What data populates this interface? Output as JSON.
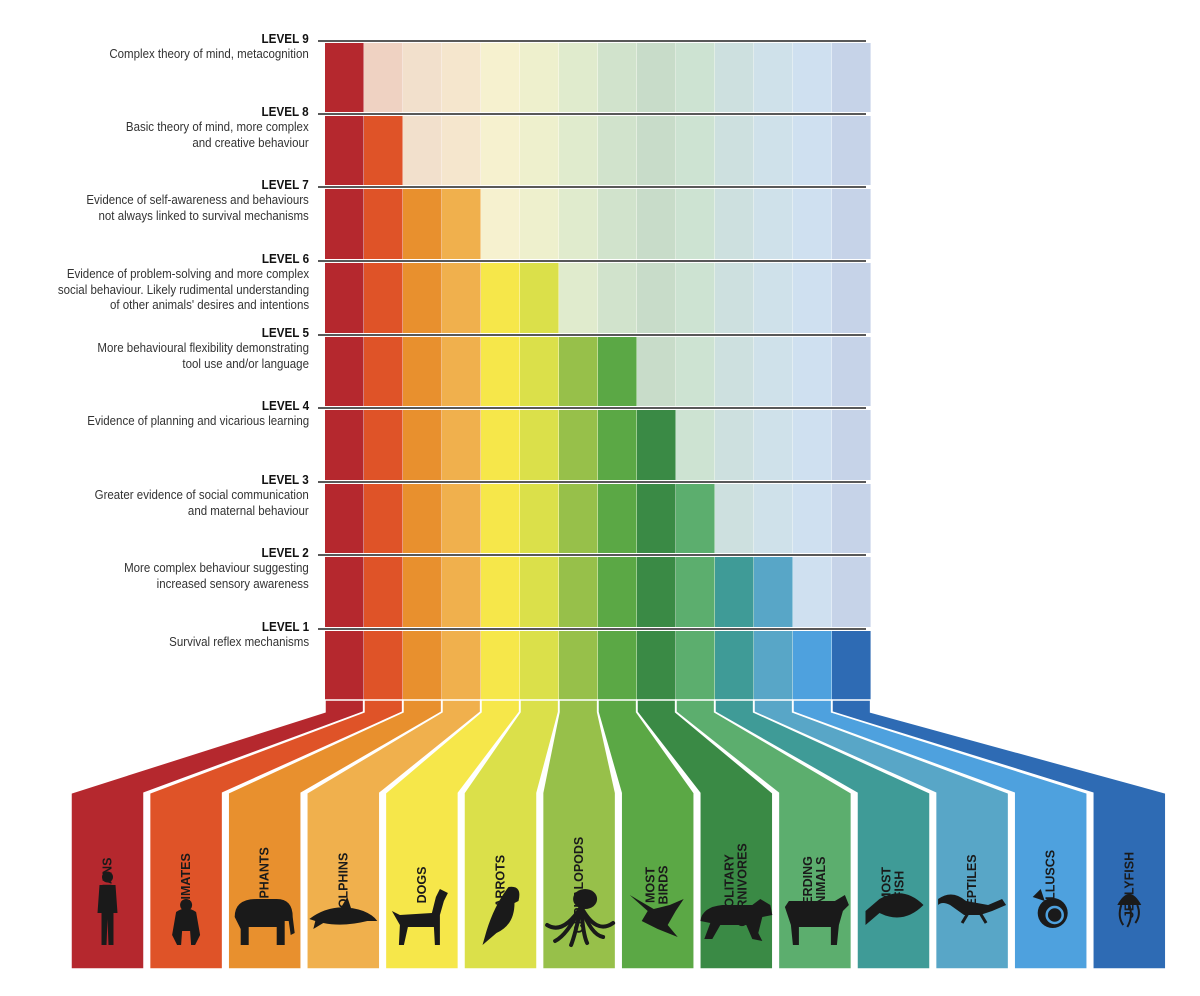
{
  "levels": [
    {
      "level": 9,
      "title": "LEVEL 9",
      "desc": [
        "Complex theory of mind, metacognition"
      ]
    },
    {
      "level": 8,
      "title": "LEVEL 8",
      "desc": [
        "Basic theory of mind, more complex",
        "and creative behaviour"
      ]
    },
    {
      "level": 7,
      "title": "LEVEL 7",
      "desc": [
        "Evidence of self-awareness and behaviours",
        "not always linked to survival mechanisms"
      ]
    },
    {
      "level": 6,
      "title": "LEVEL 6",
      "desc": [
        "Evidence of problem-solving and more complex",
        "social behaviour. Likely rudimental understanding",
        "of other animals' desires and intentions"
      ]
    },
    {
      "level": 5,
      "title": "LEVEL 5",
      "desc": [
        "More behavioural flexibility demonstrating",
        "tool use and/or language"
      ]
    },
    {
      "level": 4,
      "title": "LEVEL 4",
      "desc": [
        "Evidence of planning and vicarious learning"
      ]
    },
    {
      "level": 3,
      "title": "LEVEL 3",
      "desc": [
        "Greater evidence of social communication",
        "and maternal behaviour"
      ]
    },
    {
      "level": 2,
      "title": "LEVEL 2",
      "desc": [
        "More complex behaviour suggesting",
        "increased sensory awareness"
      ]
    },
    {
      "level": 1,
      "title": "LEVEL 1",
      "desc": [
        "Survival reflex mechanisms"
      ]
    }
  ],
  "animals": [
    {
      "name": "HUMANS",
      "max_level": 9,
      "color": "#b5282e",
      "light": "#e6b0a9",
      "icon": "human-icon"
    },
    {
      "name": "PRIMATES",
      "max_level": 8,
      "color": "#df5328",
      "light": "#efd2c2",
      "icon": "primate-icon"
    },
    {
      "name": "ELEPHANTS",
      "max_level": 7,
      "color": "#e8902e",
      "light": "#f2e0cc",
      "icon": "elephant-icon"
    },
    {
      "name": "DOLPHINS",
      "max_level": 7,
      "color": "#f0b04d",
      "light": "#f5e6cd",
      "icon": "dolphin-icon"
    },
    {
      "name": "DOGS",
      "max_level": 6,
      "color": "#f6e74a",
      "light": "#f6f1cf",
      "icon": "dog-icon"
    },
    {
      "name": "PARROTS",
      "max_level": 6,
      "color": "#dbe04a",
      "light": "#eef0cd",
      "icon": "parrot-icon"
    },
    {
      "name": "CEPHALOPODS",
      "max_level": 5,
      "color": "#97c04a",
      "light": "#e0ebcd",
      "icon": "octopus-icon"
    },
    {
      "name": "MOST BIRDS",
      "max_level": 5,
      "color": "#5ba845",
      "light": "#d1e3cc",
      "icon": "bird-icon"
    },
    {
      "name": "SOLITARY CARNIVORES",
      "max_level": 4,
      "color": "#3a8a45",
      "light": "#c8dcc9",
      "icon": "big-cat-icon"
    },
    {
      "name": "HERDING ANIMALS",
      "max_level": 3,
      "color": "#5cae6e",
      "light": "#cde3d2",
      "icon": "cow-icon"
    },
    {
      "name": "MOST FISH",
      "max_level": 2,
      "color": "#3f9b97",
      "light": "#cde0df",
      "icon": "fish-icon"
    },
    {
      "name": "REPTILES",
      "max_level": 2,
      "color": "#58a6c7",
      "light": "#cfe1ea",
      "icon": "lizard-icon"
    },
    {
      "name": "MOLLUSCS",
      "max_level": 1,
      "color": "#4ea1de",
      "light": "#cfe0f0",
      "icon": "snail-icon"
    },
    {
      "name": "JELLYFISH",
      "max_level": 1,
      "color": "#2e6bb4",
      "light": "#c6d3e8",
      "icon": "jellyfish-icon"
    }
  ]
}
